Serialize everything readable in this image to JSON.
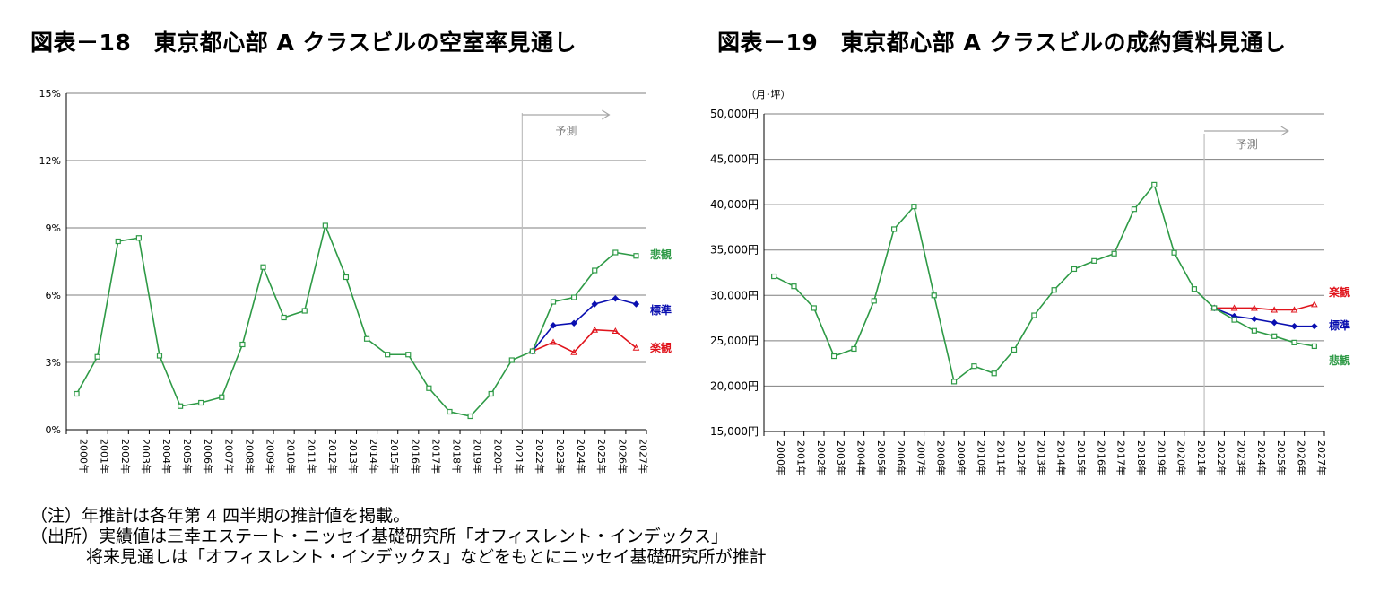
{
  "charts": [
    {
      "title": "図表－18　東京都心部 A クラスビルの空室率見通し",
      "chart_data": {
        "type": "line",
        "unit_label": "",
        "categories": [
          "2000年",
          "2001年",
          "2002年",
          "2003年",
          "2004年",
          "2005年",
          "2006年",
          "2007年",
          "2008年",
          "2009年",
          "2010年",
          "2011年",
          "2012年",
          "2013年",
          "2014年",
          "2015年",
          "2016年",
          "2017年",
          "2018年",
          "2019年",
          "2020年",
          "2021年",
          "2022年",
          "2023年",
          "2024年",
          "2025年",
          "2026年",
          "2027年"
        ],
        "yticks": [
          0,
          3,
          6,
          9,
          12,
          15
        ],
        "ytick_labels": [
          "0%",
          "3%",
          "6%",
          "9%",
          "12%",
          "15%"
        ],
        "ylim": [
          0,
          15
        ],
        "grid": true,
        "forecast_start_index": 22,
        "forecast_label": "予測",
        "series": [
          {
            "name": "悲観",
            "color": "#2e9a46",
            "marker": "square",
            "values": [
              1.6,
              3.25,
              8.4,
              8.55,
              3.3,
              1.05,
              1.2,
              1.45,
              3.8,
              7.25,
              5.0,
              5.3,
              9.1,
              6.8,
              4.05,
              3.35,
              3.35,
              1.85,
              0.8,
              0.6,
              1.6,
              3.1,
              3.5,
              5.7,
              5.9,
              7.1,
              7.9,
              7.75
            ]
          },
          {
            "name": "標準",
            "color": "#0a0fb0",
            "marker": "diamond",
            "values": [
              null,
              null,
              null,
              null,
              null,
              null,
              null,
              null,
              null,
              null,
              null,
              null,
              null,
              null,
              null,
              null,
              null,
              null,
              null,
              null,
              null,
              null,
              3.5,
              4.65,
              4.75,
              5.6,
              5.85,
              5.6
            ]
          },
          {
            "name": "楽観",
            "color": "#e0141c",
            "marker": "triangle",
            "values": [
              null,
              null,
              null,
              null,
              null,
              null,
              null,
              null,
              null,
              null,
              null,
              null,
              null,
              null,
              null,
              null,
              null,
              null,
              null,
              null,
              null,
              null,
              3.5,
              3.9,
              3.45,
              4.45,
              4.4,
              3.65
            ]
          }
        ],
        "legend_order": [
          "悲観",
          "標準",
          "楽観"
        ]
      }
    },
    {
      "title": "図表－19　東京都心部 A クラスビルの成約賃料見通し",
      "chart_data": {
        "type": "line",
        "unit_label": "（月･坪）",
        "categories": [
          "2000年",
          "2001年",
          "2002年",
          "2003年",
          "2004年",
          "2005年",
          "2006年",
          "2007年",
          "2008年",
          "2009年",
          "2010年",
          "2011年",
          "2012年",
          "2013年",
          "2014年",
          "2015年",
          "2016年",
          "2017年",
          "2018年",
          "2019年",
          "2020年",
          "2021年",
          "2022年",
          "2023年",
          "2024年",
          "2025年",
          "2026年",
          "2027年"
        ],
        "yticks": [
          15000,
          20000,
          25000,
          30000,
          35000,
          40000,
          45000,
          50000
        ],
        "ytick_labels": [
          "15,000円",
          "20,000円",
          "25,000円",
          "30,000円",
          "35,000円",
          "40,000円",
          "45,000円",
          "50,000円"
        ],
        "ylim": [
          15000,
          50000
        ],
        "grid": true,
        "forecast_start_index": 22,
        "forecast_label": "予測",
        "series": [
          {
            "name": "悲観",
            "color": "#2e9a46",
            "marker": "square",
            "values": [
              32100,
              31000,
              28600,
              23300,
              24100,
              29400,
              37300,
              39800,
              30000,
              20500,
              22200,
              21400,
              24000,
              27800,
              30600,
              32900,
              33800,
              34600,
              39500,
              42200,
              34700,
              30700,
              28600,
              27300,
              26100,
              25500,
              24800,
              24400
            ]
          },
          {
            "name": "標準",
            "color": "#0a0fb0",
            "marker": "diamond",
            "values": [
              null,
              null,
              null,
              null,
              null,
              null,
              null,
              null,
              null,
              null,
              null,
              null,
              null,
              null,
              null,
              null,
              null,
              null,
              null,
              null,
              null,
              null,
              28600,
              27700,
              27400,
              27000,
              26600,
              26600
            ]
          },
          {
            "name": "楽観",
            "color": "#e0141c",
            "marker": "triangle",
            "values": [
              null,
              null,
              null,
              null,
              null,
              null,
              null,
              null,
              null,
              null,
              null,
              null,
              null,
              null,
              null,
              null,
              null,
              null,
              null,
              null,
              null,
              null,
              28600,
              28600,
              28600,
              28400,
              28400,
              29000
            ]
          }
        ],
        "legend_order": [
          "楽観",
          "標準",
          "悲観"
        ]
      }
    }
  ],
  "notes": [
    "（注）年推計は各年第 4 四半期の推計値を掲載。",
    "（出所）実績値は三幸エステート・ニッセイ基礎研究所「オフィスレント・インデックス」",
    "将来見通しは「オフィスレント・インデックス」などをもとにニッセイ基礎研究所が推計"
  ]
}
